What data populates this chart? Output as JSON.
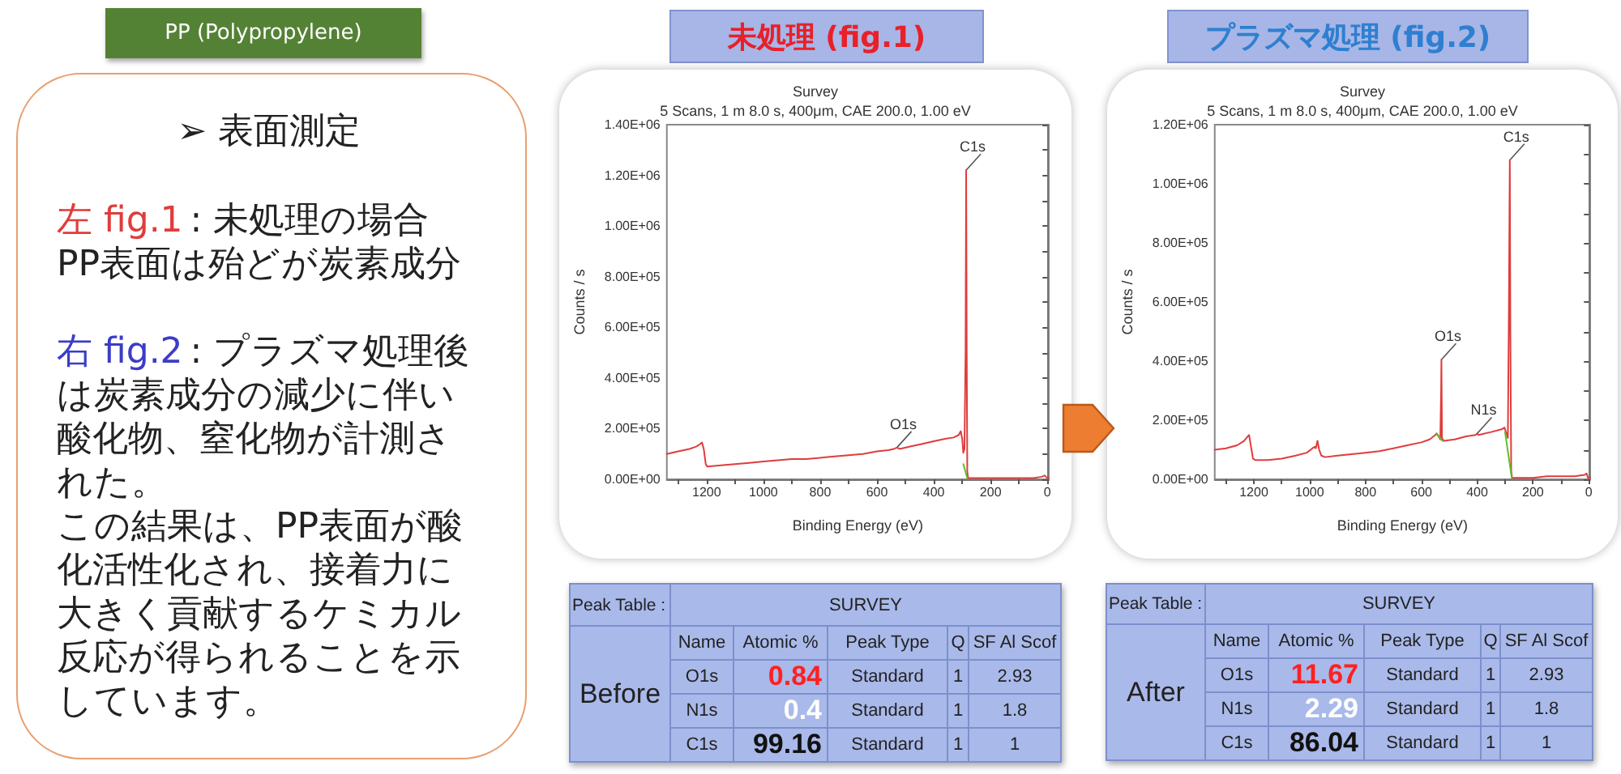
{
  "chart_data": [
    {
      "type": "other",
      "title": "PP (Polypropylene)",
      "annotations": [
        "➢ 表面測定",
        "左 fig.1",
        ": 未処理の場合",
        "PP表面は殆どが炭素成分",
        "右 fig.2",
        ": プラズマ処理後",
        "は炭素成分の減少に伴い酸化物、窒化物が計測された。",
        "この結果は、PP表面が酸化活性化され、接着力に大きく貢献するケミカル反応が得られることを示しています。"
      ],
      "colors": [
        "#222222",
        "#e03c3c",
        "#222222",
        "#222222",
        "#3c3cc8",
        "#222222",
        "#222222",
        "#222222"
      ]
    },
    {
      "type": "line",
      "title": "未処理 (fig.1)",
      "subtitle": "Survey",
      "xlabel": "Binding Energy (eV)",
      "ylabel": "Counts / s",
      "annotations": [
        "5 Scans, 1 m 8.0 s, 400μm, CAE 200.0, 1.00 eV",
        {
          "text": "O1s",
          "x": 530,
          "y": 125000
        },
        {
          "text": "C1s",
          "x": 286,
          "y": 1220000
        }
      ],
      "xlim": [
        1340,
        -5
      ],
      "xticks": [
        {
          "value": 1300,
          "label": null
        },
        1200,
        {
          "value": 1100,
          "label": null
        },
        1000,
        {
          "value": 900,
          "label": null
        },
        800,
        {
          "value": 700,
          "label": null
        },
        600,
        {
          "value": 500,
          "label": null
        },
        400,
        {
          "value": 300,
          "label": null
        },
        200,
        {
          "value": 100,
          "label": null
        },
        0
      ],
      "ylim": [
        0,
        1400000
      ],
      "yticks": [
        {
          "value": 0,
          "label": "0.00E+00"
        },
        {
          "value": 100000,
          "label": null
        },
        {
          "value": 200000,
          "label": "2.00E+05"
        },
        {
          "value": 300000,
          "label": null
        },
        {
          "value": 400000,
          "label": "4.00E+05"
        },
        {
          "value": 500000,
          "label": null
        },
        {
          "value": 600000,
          "label": "6.00E+05"
        },
        {
          "value": 700000,
          "label": null
        },
        {
          "value": 800000,
          "label": "8.00E+05"
        },
        {
          "value": 900000,
          "label": null
        },
        {
          "value": 1000000,
          "label": "1.00E+06"
        },
        {
          "value": 1100000,
          "label": null
        },
        {
          "value": 1200000,
          "label": "1.20E+06"
        },
        {
          "value": 1300000,
          "label": null
        },
        {
          "value": 1400000,
          "label": "1.40E+06"
        }
      ],
      "series": [
        {
          "color": "#e03c3c",
          "x": [
            1340,
            1300,
            1260,
            1235,
            1222,
            1216,
            1210,
            1203,
            1198,
            1150,
            1100,
            1050,
            1000,
            950,
            900,
            850,
            800,
            750,
            700,
            650,
            600,
            560,
            540,
            530,
            520,
            480,
            440,
            400,
            360,
            330,
            312,
            305,
            300,
            296,
            292,
            288,
            286,
            284,
            282,
            279,
            250,
            200,
            150,
            100,
            50,
            20,
            10,
            5,
            0,
            -5
          ],
          "values": [
            100000,
            110000,
            120000,
            130000,
            140000,
            145000,
            120000,
            60000,
            50000,
            55000,
            60000,
            65000,
            70000,
            75000,
            80000,
            80000,
            85000,
            90000,
            95000,
            100000,
            110000,
            115000,
            120000,
            125000,
            120000,
            130000,
            140000,
            150000,
            160000,
            165000,
            175000,
            190000,
            160000,
            105000,
            120000,
            500000,
            1220000,
            500000,
            30000,
            5000,
            5000,
            5000,
            5000,
            5000,
            5000,
            10000,
            15000,
            10000,
            5000,
            5000
          ]
        },
        {
          "color": "#5cbf2a",
          "x": [
            296,
            282
          ],
          "values": [
            60000,
            5000
          ]
        }
      ]
    },
    {
      "type": "line",
      "title": "プラズマ処理 (fig.2)",
      "subtitle": "Survey",
      "xlabel": "Binding Energy (eV)",
      "ylabel": "Counts / s",
      "annotations": [
        "5 Scans, 1 m 8.0 s, 400μm, CAE 200.0, 1.00 eV",
        {
          "text": "O1s",
          "x": 528,
          "y": 405000
        },
        {
          "text": "N1s",
          "x": 400,
          "y": 155000
        },
        {
          "text": "C1s",
          "x": 283,
          "y": 1080000
        }
      ],
      "xlim": [
        1340,
        -5
      ],
      "xticks": [
        {
          "value": 1300,
          "label": null
        },
        1200,
        {
          "value": 1100,
          "label": null
        },
        1000,
        {
          "value": 900,
          "label": null
        },
        800,
        {
          "value": 700,
          "label": null
        },
        600,
        {
          "value": 500,
          "label": null
        },
        400,
        {
          "value": 300,
          "label": null
        },
        200,
        {
          "value": 100,
          "label": null
        },
        0
      ],
      "ylim": [
        0,
        1200000
      ],
      "yticks": [
        {
          "value": 0,
          "label": "0.00E+00"
        },
        {
          "value": 100000,
          "label": null
        },
        {
          "value": 200000,
          "label": "2.00E+05"
        },
        {
          "value": 300000,
          "label": null
        },
        {
          "value": 400000,
          "label": "4.00E+05"
        },
        {
          "value": 500000,
          "label": null
        },
        {
          "value": 600000,
          "label": "6.00E+05"
        },
        {
          "value": 700000,
          "label": null
        },
        {
          "value": 800000,
          "label": "8.00E+05"
        },
        {
          "value": 900000,
          "label": null
        },
        {
          "value": 1000000,
          "label": "1.00E+06"
        },
        {
          "value": 1100000,
          "label": null
        },
        {
          "value": 1200000,
          "label": "1.20E+06"
        }
      ],
      "series": [
        {
          "color": "#e03c3c",
          "x": [
            1340,
            1300,
            1260,
            1235,
            1222,
            1217,
            1210,
            1203,
            1195,
            1150,
            1100,
            1050,
            1010,
            990,
            982,
            978,
            972,
            966,
            958,
            945,
            900,
            850,
            800,
            750,
            700,
            650,
            600,
            570,
            550,
            545,
            538,
            532,
            529,
            528,
            526,
            520,
            480,
            440,
            405,
            400,
            395,
            350,
            310,
            302,
            297,
            290,
            286,
            283,
            281,
            278,
            275,
            250,
            200,
            150,
            100,
            50,
            15,
            8,
            3,
            -5
          ],
          "values": [
            100000,
            105000,
            115000,
            130000,
            145000,
            150000,
            110000,
            70000,
            65000,
            65000,
            70000,
            80000,
            90000,
            105000,
            110000,
            105000,
            130000,
            100000,
            80000,
            75000,
            80000,
            85000,
            90000,
            95000,
            105000,
            115000,
            125000,
            135000,
            150000,
            155000,
            145000,
            135000,
            300000,
            405000,
            140000,
            130000,
            135000,
            145000,
            150000,
            155000,
            150000,
            160000,
            170000,
            175000,
            160000,
            140000,
            600000,
            1080000,
            500000,
            30000,
            5000,
            5000,
            5000,
            10000,
            10000,
            10000,
            15000,
            20000,
            5000,
            5000
          ]
        },
        {
          "color": "#5cbf2a",
          "x": [
            545,
            524,
            520,
            300,
            276
          ],
          "values": [
            155000,
            130000,
            null,
            160000,
            5000
          ]
        }
      ]
    },
    {
      "type": "other",
      "title": "Peak Table :",
      "subtitle": "SURVEY",
      "ylabel": "Before",
      "categories": [
        "Name",
        "Atomic %",
        "Peak Type",
        "Q",
        "SF Al Scof"
      ],
      "y_categories": [
        "O1s",
        "N1s",
        "C1s"
      ],
      "cell_labels": [
        [
          "0.84",
          "Standard",
          "1",
          "2.93"
        ],
        [
          "0.4",
          "Standard",
          "1",
          "1.8"
        ],
        [
          "99.16",
          "Standard",
          "1",
          "1"
        ]
      ]
    },
    {
      "type": "other",
      "title": "Peak Table :",
      "subtitle": "SURVEY",
      "ylabel": "After",
      "categories": [
        "Name",
        "Atomic %",
        "Peak Type",
        "Q",
        "SF Al Scof"
      ],
      "y_categories": [
        "O1s",
        "N1s",
        "C1s"
      ],
      "cell_labels": [
        [
          "11.67",
          "Standard",
          "1",
          "2.93"
        ],
        [
          "2.29",
          "Standard",
          "1",
          "1.8"
        ],
        [
          "86.04",
          "Standard",
          "1",
          "1"
        ]
      ]
    }
  ]
}
